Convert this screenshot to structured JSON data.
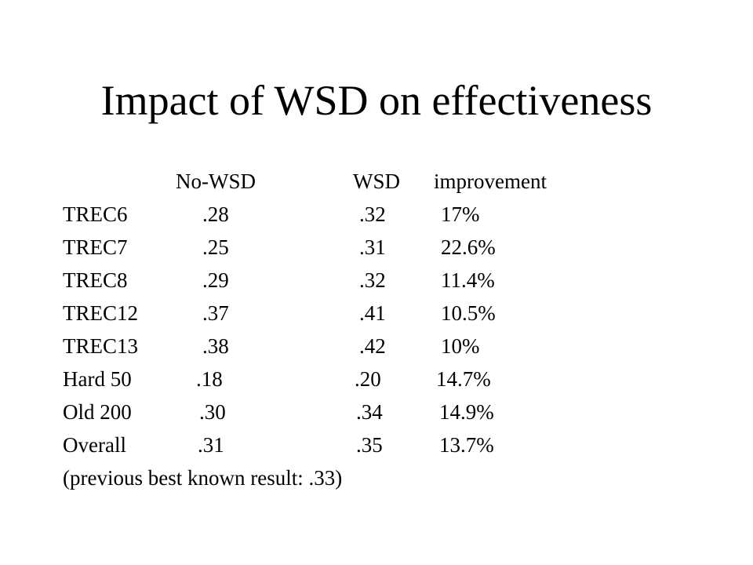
{
  "slide": {
    "title": "Impact of WSD on effectiveness",
    "table": {
      "headers": [
        "No-WSD",
        "WSD",
        "improvement"
      ],
      "rows": [
        {
          "label": "TREC6",
          "no_wsd": ".28",
          "wsd": ".32",
          "improvement": "17%"
        },
        {
          "label": "TREC7",
          "no_wsd": ".25",
          "wsd": ".31",
          "improvement": "22.6%"
        },
        {
          "label": "TREC8",
          "no_wsd": ".29",
          "wsd": ".32",
          "improvement": "11.4%"
        },
        {
          "label": "TREC12",
          "no_wsd": ".37",
          "wsd": ".41",
          "improvement": "10.5%"
        },
        {
          "label": "TREC13",
          "no_wsd": ".38",
          "wsd": ".42",
          "improvement": "10%"
        },
        {
          "label": "Hard 50",
          "no_wsd": ".18",
          "wsd": ".20",
          "improvement": "14.7%"
        },
        {
          "label": "Old 200",
          "no_wsd": ".30",
          "wsd": ".34",
          "improvement": "14.9%"
        },
        {
          "label": "Overall",
          "no_wsd": ".31",
          "wsd": ".35",
          "improvement": "13.7%"
        }
      ]
    },
    "footnote": "(previous best known result: .33)"
  }
}
